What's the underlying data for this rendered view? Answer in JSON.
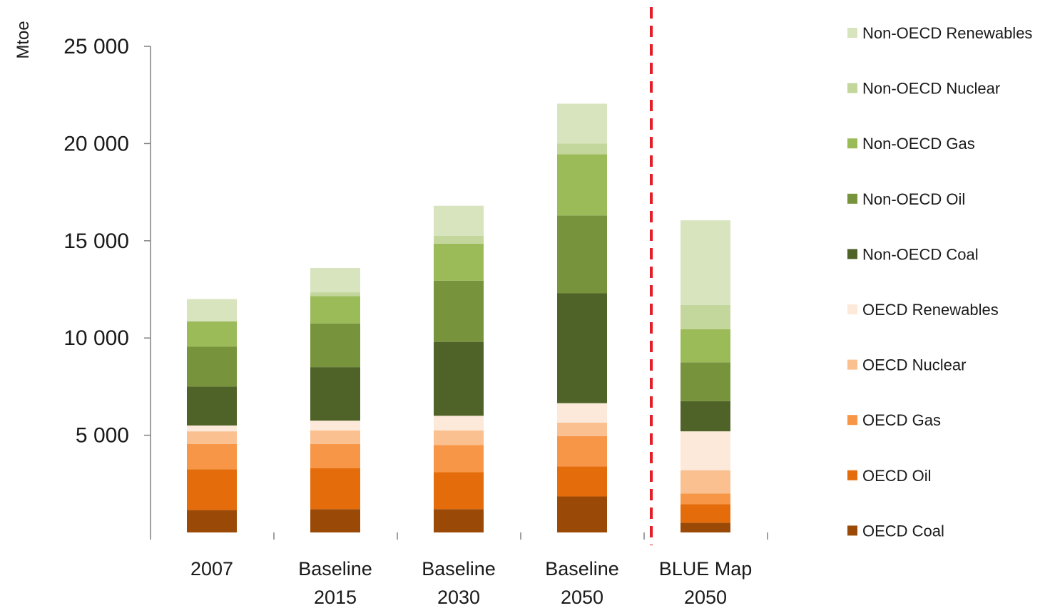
{
  "chart_data": {
    "type": "bar",
    "stacked": true,
    "ylabel": "Mtoe",
    "ylim": [
      0,
      25000
    ],
    "yticks": [
      5000,
      10000,
      15000,
      20000,
      25000
    ],
    "ytick_labels": [
      "5 000",
      "10 000",
      "15 000",
      "20 000",
      "25 000"
    ],
    "categories": [
      [
        "2007"
      ],
      [
        "Baseline",
        "2015"
      ],
      [
        "Baseline",
        "2030"
      ],
      [
        "Baseline",
        "2050"
      ],
      [
        "BLUE Map",
        "2050"
      ]
    ],
    "divider_after_category": 3,
    "divider_color": "#e41e26",
    "legend_position": "right",
    "series": [
      {
        "name": "OECD Coal",
        "color": "#9a4a06",
        "values": [
          1150,
          1200,
          1200,
          1850,
          500
        ]
      },
      {
        "name": "OECD Oil",
        "color": "#e46c0a",
        "values": [
          2100,
          2100,
          1900,
          1550,
          950
        ]
      },
      {
        "name": "OECD Gas",
        "color": "#f79646",
        "values": [
          1300,
          1250,
          1400,
          1550,
          550
        ]
      },
      {
        "name": "OECD Nuclear",
        "color": "#fac090",
        "values": [
          650,
          700,
          750,
          700,
          1200
        ]
      },
      {
        "name": "OECD Renewables",
        "color": "#fde9d9",
        "values": [
          300,
          500,
          750,
          1000,
          2000
        ]
      },
      {
        "name": "Non-OECD Coal",
        "color": "#4f6228",
        "values": [
          2000,
          2750,
          3800,
          5650,
          1550
        ]
      },
      {
        "name": "Non-OECD Oil",
        "color": "#77933c",
        "values": [
          2050,
          2250,
          3150,
          4000,
          2000
        ]
      },
      {
        "name": "Non-OECD Gas",
        "color": "#9bbb59",
        "values": [
          1300,
          1400,
          1900,
          3150,
          1700
        ]
      },
      {
        "name": "Non-OECD Nuclear",
        "color": "#c3d69b",
        "values": [
          0,
          200,
          400,
          550,
          1250
        ]
      },
      {
        "name": "Non-OECD Renewables",
        "color": "#d7e4bd",
        "values": [
          1150,
          1250,
          1550,
          2050,
          4350
        ]
      }
    ]
  }
}
